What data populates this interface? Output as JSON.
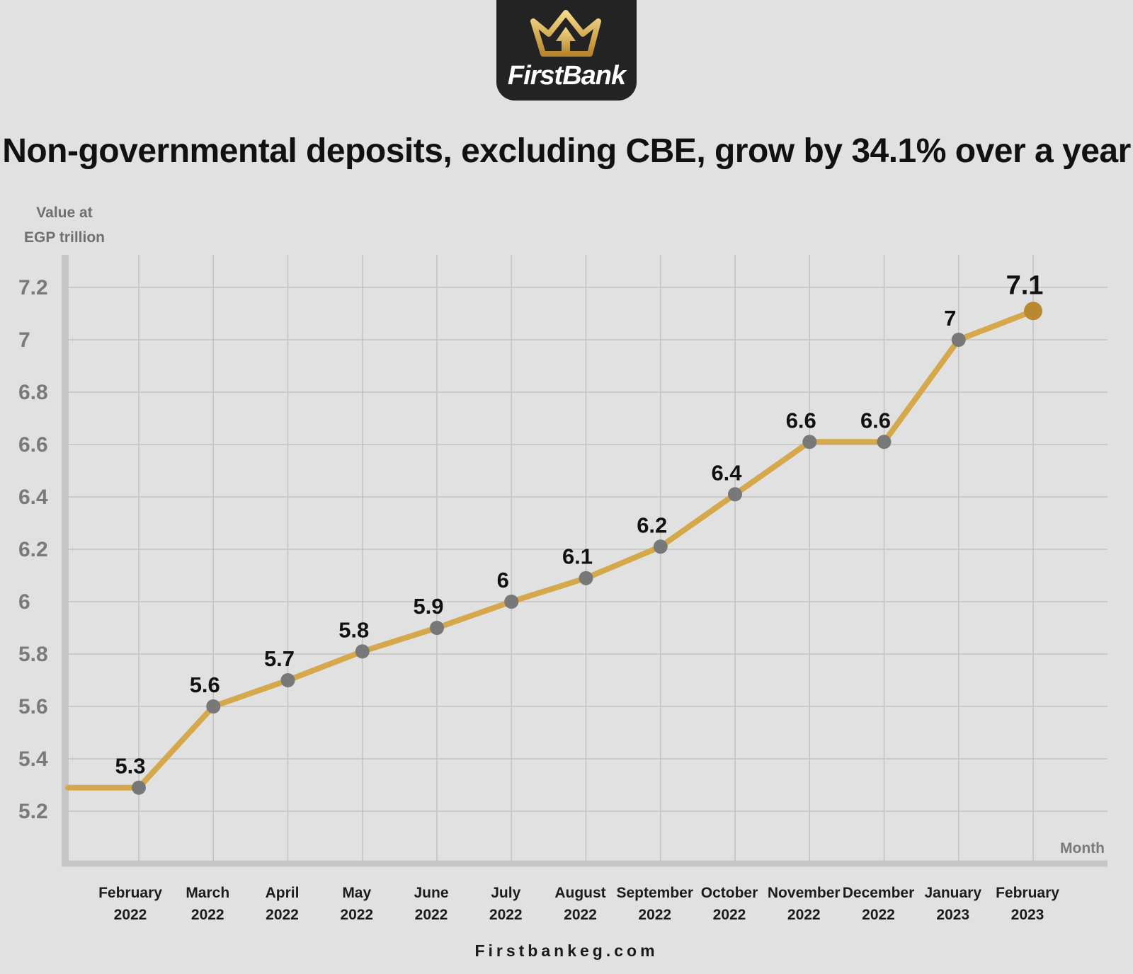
{
  "brand": {
    "name": "FirstBank",
    "icon": "crown-icon",
    "colors": {
      "badge": "#232323",
      "gold": "#d4a84b"
    }
  },
  "title": "Non-governmental deposits, excluding CBE, grow by 34.1% over a year",
  "footer": "Firstbankeg.com",
  "chart_data": {
    "type": "line",
    "ylabel": [
      "Value at",
      "EGP trillion"
    ],
    "xlabel": "Month",
    "ylim": [
      5.1,
      7.3
    ],
    "yticks": [
      "7.2",
      "7",
      "6.8",
      "6.6",
      "6.4",
      "6.2",
      "6",
      "5.8",
      "5.6",
      "5.4",
      "5.2"
    ],
    "grid": true,
    "colors": {
      "line": "#d4a84b",
      "point": "#787878",
      "highlight": "#b8892e"
    },
    "categories": [
      [
        "February",
        "2022"
      ],
      [
        "March",
        "2022"
      ],
      [
        "April",
        "2022"
      ],
      [
        "May",
        "2022"
      ],
      [
        "June",
        "2022"
      ],
      [
        "July",
        "2022"
      ],
      [
        "August",
        "2022"
      ],
      [
        "September",
        "2022"
      ],
      [
        "October",
        "2022"
      ],
      [
        "November",
        "2022"
      ],
      [
        "December",
        "2022"
      ],
      [
        "January",
        "2023"
      ],
      [
        "February",
        "2023"
      ]
    ],
    "values": [
      5.29,
      5.6,
      5.7,
      5.81,
      5.9,
      6.0,
      6.09,
      6.21,
      6.41,
      6.61,
      6.61,
      7.0,
      7.11
    ],
    "labels": [
      "5.3",
      "5.6",
      "5.7",
      "5.8",
      "5.9",
      "6",
      "6.1",
      "6.2",
      "6.4",
      "6.6",
      "6.6",
      "7",
      "7.1"
    ]
  }
}
